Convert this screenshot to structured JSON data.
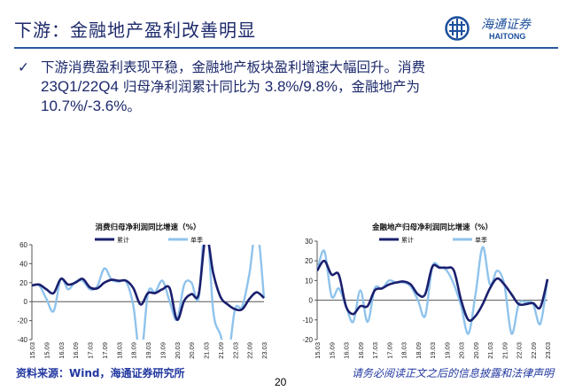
{
  "header": {
    "title": "下游：金融地产盈利改善明显",
    "logo_cn": "海通证券",
    "logo_en": "HAITONG"
  },
  "bullet": {
    "icon": "checkmark-icon",
    "line1": "下游消费盈利表现平稳，金融地产板块盈利增速大幅回升。消费",
    "line2_a": "23Q1/22Q4",
    "line2_b": "归母净利润累计同比为",
    "line2_c": "3.8%/9.8%",
    "line2_d": "，金融地产为",
    "line3_a": "10.7%/-3.6%",
    "line3_b": "。"
  },
  "colors": {
    "cumulative": "#1a1f6e",
    "quarterly": "#8fc3ec",
    "title": "#1d2a6b",
    "rule": "#2a5a9c"
  },
  "chart_data": [
    {
      "type": "line",
      "title": "消费归母净利润同比增速（%）",
      "ylim": [
        -40,
        60
      ],
      "yticks": [
        -40,
        -20,
        0,
        20,
        40,
        60
      ],
      "tick_labels": [
        "15.03",
        "15.09",
        "16.03",
        "16.09",
        "17.03",
        "17.09",
        "18.03",
        "18.09",
        "19.03",
        "19.09",
        "20.03",
        "20.09",
        "21.03",
        "21.09",
        "22.03",
        "22.09",
        "23.03"
      ],
      "x": [
        "15.03",
        "15.06",
        "15.09",
        "15.12",
        "16.03",
        "16.06",
        "16.09",
        "16.12",
        "17.03",
        "17.06",
        "17.09",
        "17.12",
        "18.03",
        "18.06",
        "18.09",
        "18.12",
        "19.03",
        "19.06",
        "19.09",
        "19.12",
        "20.03",
        "20.06",
        "20.09",
        "20.12",
        "21.03",
        "21.06",
        "21.09",
        "21.12",
        "22.03",
        "22.06",
        "22.09",
        "22.12",
        "23.03"
      ],
      "series": [
        {
          "name": "累计",
          "values": [
            17,
            18,
            13,
            9,
            24,
            18,
            20,
            24,
            15,
            14,
            20,
            23,
            22,
            22,
            14,
            -3,
            9,
            9,
            13,
            14,
            -19,
            1,
            8,
            8,
            70,
            30,
            5,
            -3,
            -8,
            -8,
            3,
            9.8,
            3.8
          ]
        },
        {
          "name": "单季",
          "values": [
            17,
            17,
            3,
            -10,
            24,
            13,
            21,
            22,
            13,
            16,
            35,
            23,
            21,
            21,
            -5,
            -60,
            9,
            10,
            22,
            0,
            -19,
            18,
            20,
            4,
            90,
            -10,
            -35,
            -60,
            -8,
            -5,
            30,
            80,
            3.8
          ]
        }
      ]
    },
    {
      "type": "line",
      "title": "金融地产归母净利润同比增速（%）",
      "ylim": [
        -20,
        30
      ],
      "yticks": [
        -20,
        -10,
        0,
        10,
        20,
        30
      ],
      "tick_labels": [
        "15.03",
        "15.09",
        "16.03",
        "16.09",
        "17.03",
        "17.09",
        "18.03",
        "18.09",
        "19.03",
        "19.09",
        "20.03",
        "20.09",
        "21.03",
        "21.09",
        "22.03",
        "22.09",
        "23.03"
      ],
      "x": [
        "15.03",
        "15.06",
        "15.09",
        "15.12",
        "16.03",
        "16.06",
        "16.09",
        "16.12",
        "17.03",
        "17.06",
        "17.09",
        "17.12",
        "18.03",
        "18.06",
        "18.09",
        "18.12",
        "19.03",
        "19.06",
        "19.09",
        "19.12",
        "20.03",
        "20.06",
        "20.09",
        "20.12",
        "21.03",
        "21.06",
        "21.09",
        "21.12",
        "22.03",
        "22.06",
        "22.09",
        "22.12",
        "23.03"
      ],
      "series": [
        {
          "name": "累计",
          "values": [
            15,
            20,
            13,
            13,
            -3,
            -7,
            -3,
            -3,
            5,
            6,
            8,
            9,
            9.5,
            8,
            3,
            3,
            17,
            16.5,
            16.5,
            15,
            0,
            -10,
            -8,
            -2,
            6,
            11,
            8,
            3,
            -2,
            -2,
            -1.5,
            -3.6,
            10.7
          ]
        },
        {
          "name": "单季",
          "values": [
            15,
            25,
            2,
            6,
            -3,
            -11,
            5,
            -11,
            6,
            6,
            10,
            9,
            9,
            7,
            0,
            -8,
            17,
            17,
            15,
            8,
            -3,
            -17,
            3,
            27,
            8,
            15,
            8,
            -17,
            -2,
            -1,
            -2,
            -12,
            10.7
          ]
        }
      ]
    }
  ],
  "footer": {
    "source": "资料来源：Wind，海通证券研究所",
    "page": "20",
    "disclaimer": "请务必阅读正文之后的信息披露和法律声明"
  }
}
